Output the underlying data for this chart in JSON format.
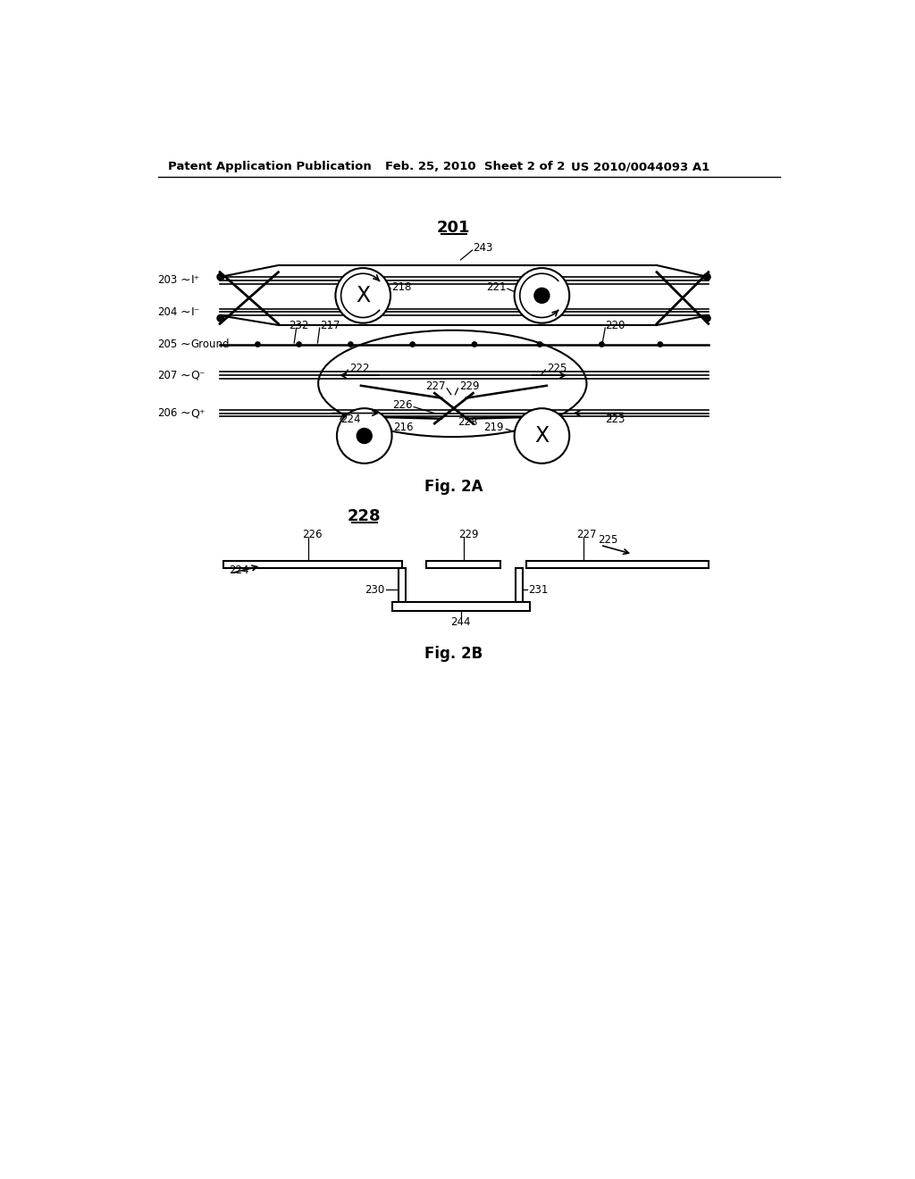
{
  "bg_color": "#ffffff",
  "header_left": "Patent Application Publication",
  "header_center": "Feb. 25, 2010  Sheet 2 of 2",
  "header_right": "US 2010/0044093 A1",
  "fig2a_label": "201",
  "fig2a_caption": "Fig. 2A",
  "fig2b_label": "228",
  "fig2b_caption": "Fig. 2B"
}
